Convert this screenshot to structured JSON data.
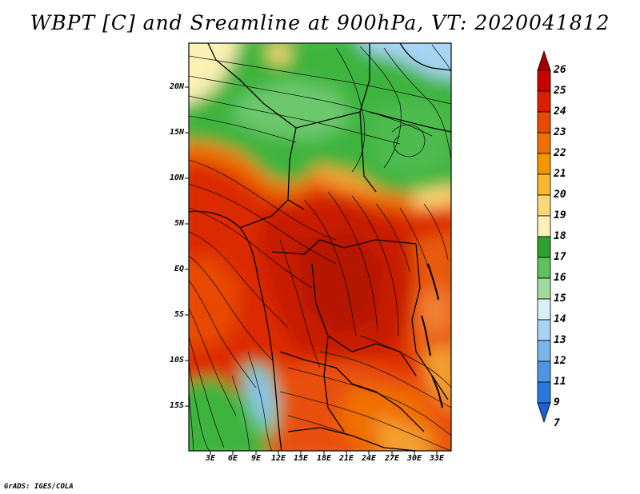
{
  "title": "WBPT [C] and Sreamline at 900hPa, VT: 2020041812",
  "credit": "GrADS: IGES/COLA",
  "latitude_labels": [
    "20N",
    "15N",
    "10N",
    "5N",
    "EQ",
    "5S",
    "10S",
    "15S"
  ],
  "longitude_labels": [
    "3E",
    "6E",
    "9E",
    "12E",
    "15E",
    "18E",
    "21E",
    "24E",
    "27E",
    "30E",
    "33E"
  ],
  "colorbar": {
    "labels": [
      "26",
      "25",
      "24",
      "23",
      "22",
      "21",
      "20",
      "19",
      "18",
      "17",
      "16",
      "15",
      "14",
      "13",
      "12",
      "11",
      "9",
      "7"
    ],
    "colors": [
      "#a50000",
      "#c80000",
      "#dc1e00",
      "#e84a00",
      "#f06e00",
      "#f49600",
      "#f8b830",
      "#fad878",
      "#fcf0b4",
      "#2ea02e",
      "#5cc25c",
      "#a0dca0",
      "#d8f0f6",
      "#a8d4f4",
      "#78b6ec",
      "#4c96e4",
      "#2a78dc",
      "#1a60d4"
    ]
  },
  "colors": {
    "deep_red": "#c81e00",
    "red": "#dc2a00",
    "orange_red": "#e84a00",
    "orange": "#f07000",
    "light_orange": "#f4a030",
    "yellow": "#fad878",
    "pale_yellow": "#fcf0b4",
    "green": "#3cb43c",
    "light_green": "#6cc86c",
    "pale_green": "#a8e0a8",
    "light_blue": "#a8d4f4",
    "blue": "#78b6ec"
  }
}
